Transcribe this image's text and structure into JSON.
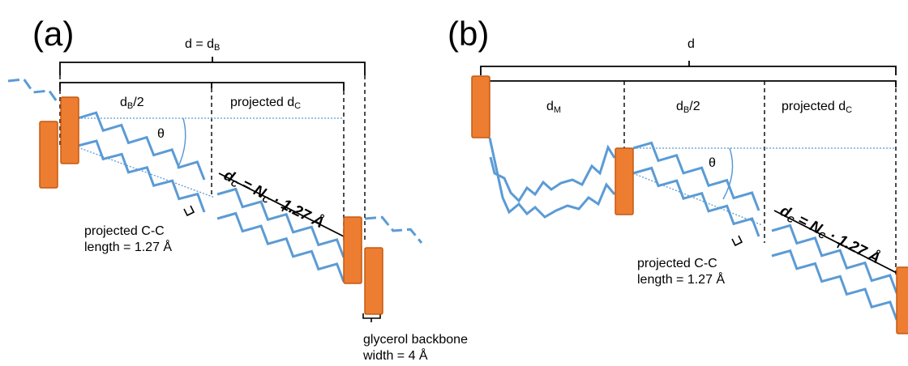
{
  "panel_a": {
    "label": "(a)",
    "total_label": "d = d",
    "total_sub": "B",
    "half_label": "d",
    "half_sub": "B",
    "half_suffix": "/2",
    "projected_label": "projected d",
    "projected_sub": "C",
    "theta": "θ",
    "dc_symbol": "d",
    "dc_sub": "C",
    "dc_formula": " = N",
    "dc_formula_sub": "C",
    "dc_formula_tail": " · 1.27 Å",
    "cc_line1": "projected C-C",
    "cc_line2": "length = 1.27 Å",
    "glycerol_line1": "glycerol backbone",
    "glycerol_line2": "width = 4 Å"
  },
  "panel_b": {
    "label": "(b)",
    "total_label": "d",
    "dm_label": "d",
    "dm_sub": "M",
    "half_label": "d",
    "half_sub": "B",
    "half_suffix": "/2",
    "projected_label": "projected d",
    "projected_sub": "C",
    "theta": "θ",
    "dc_symbol": "d",
    "dc_sub": "C",
    "dc_formula": " = N",
    "dc_formula_sub": "C",
    "dc_formula_tail": " · 1.27 Å",
    "cc_line1": "projected C-C",
    "cc_line2": "length = 1.27 Å"
  },
  "colors": {
    "headgroup_fill": "#ED7D31",
    "headgroup_stroke": "#C55A11",
    "chain": "#5B9BD5",
    "dimension": "#000000"
  }
}
